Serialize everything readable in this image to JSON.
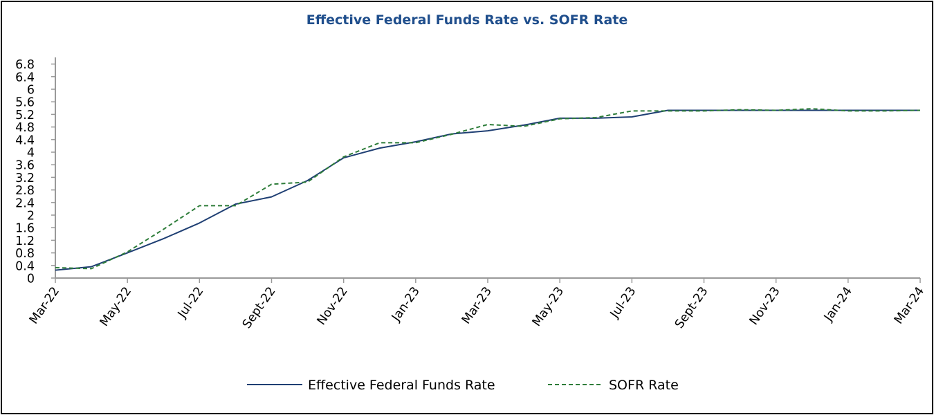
{
  "chart_data": {
    "type": "line",
    "title": "Effective Federal Funds Rate vs. SOFR Rate",
    "xlabel": "",
    "ylabel": "",
    "ylim": [
      0,
      7
    ],
    "y_ticks": [
      "0",
      "0.4",
      "0.8",
      "1.2",
      "1.6",
      "2",
      "2.4",
      "2.8",
      "3.2",
      "3.6",
      "4",
      "4.4",
      "4.8",
      "5.2",
      "5.6",
      "6",
      "6.4",
      "6.8"
    ],
    "x_tick_labels": [
      "Mar-22",
      "May-22",
      "Jul-22",
      "Sept-22",
      "Nov-22",
      "Jan-23",
      "Mar-23",
      "May-23",
      "Jul-23",
      "Sept-23",
      "Nov-23",
      "Jan-24",
      "Mar-24"
    ],
    "x": [
      "Mar-22",
      "Apr-22",
      "May-22",
      "Jun-22",
      "Jul-22",
      "Aug-22",
      "Sept-22",
      "Oct-22",
      "Nov-22",
      "Dec-22",
      "Jan-23",
      "Feb-23",
      "Mar-23",
      "Apr-23",
      "May-23",
      "Jun-23",
      "Jul-23",
      "Aug-23",
      "Sept-23",
      "Oct-23",
      "Nov-23",
      "Dec-23",
      "Jan-24",
      "Feb-24",
      "Mar-24"
    ],
    "series": [
      {
        "name": "Effective Federal Funds Rate",
        "color": "#1f3f73",
        "dash": "solid",
        "values": [
          0.25,
          0.36,
          0.8,
          1.25,
          1.75,
          2.35,
          2.58,
          3.1,
          3.82,
          4.13,
          4.33,
          4.58,
          4.68,
          4.86,
          5.08,
          5.08,
          5.12,
          5.33,
          5.33,
          5.33,
          5.33,
          5.33,
          5.33,
          5.33,
          5.33
        ]
      },
      {
        "name": "SOFR Rate",
        "color": "#2e7d3a",
        "dash": "dashed",
        "values": [
          0.33,
          0.3,
          0.83,
          1.55,
          2.3,
          2.3,
          2.98,
          3.05,
          3.85,
          4.3,
          4.3,
          4.57,
          4.88,
          4.82,
          5.06,
          5.1,
          5.31,
          5.31,
          5.31,
          5.35,
          5.33,
          5.38,
          5.31,
          5.31,
          5.33
        ]
      }
    ],
    "legend_position": "bottom-center",
    "grid": false
  }
}
